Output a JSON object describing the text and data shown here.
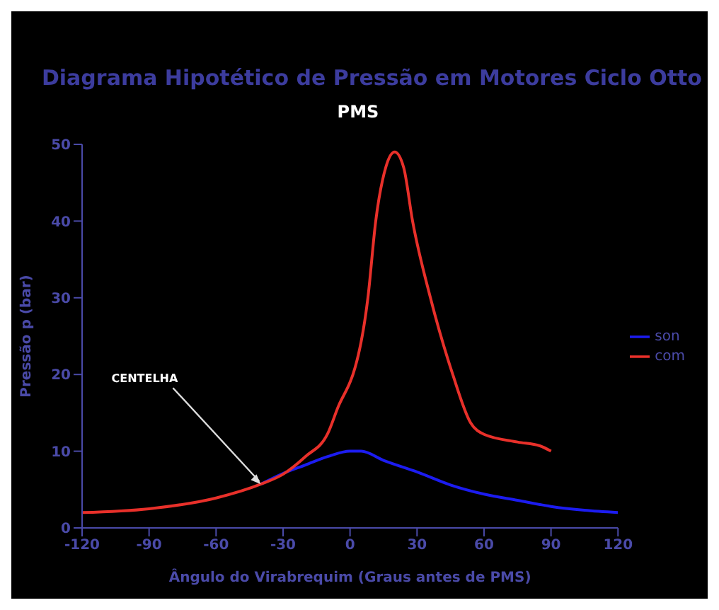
{
  "chart_data": {
    "type": "line",
    "title": "Diagrama Hipotético de Pressão em Motores Ciclo Otto",
    "xlabel": "Ângulo do Virabrequim (Graus antes de PMS)",
    "ylabel": "Pressão p (bar)",
    "xlim": [
      -120,
      120
    ],
    "xticks": [
      -120,
      -90,
      -60,
      -30,
      0,
      30,
      60,
      90,
      120
    ],
    "ylim": [
      0,
      50
    ],
    "yticks": [
      0,
      10,
      20,
      30,
      40,
      50
    ],
    "grid": false,
    "legend": "right",
    "marker": "none",
    "line_style": "solid",
    "annotations": [
      "PMS",
      {
        "text": "CENTELHA",
        "x": -40,
        "y": 5.7
      }
    ],
    "series": [
      {
        "name": "son",
        "color": "#1c1cf0",
        "x": [
          -40,
          -30,
          -20,
          -10,
          0,
          5,
          15,
          30,
          45,
          60,
          75,
          90,
          105,
          120
        ],
        "values": [
          5.7,
          7.1,
          8.2,
          9.3,
          10,
          10,
          8.8,
          7.3,
          5.6,
          4.4,
          3.6,
          2.8,
          2.3,
          2
        ]
      },
      {
        "name": "com",
        "color": "#e8302a",
        "x": [
          -120,
          -90,
          -60,
          -40,
          -30,
          -20,
          -10,
          -5,
          0,
          1.3,
          8,
          11.5,
          16,
          20,
          24,
          28,
          36,
          46,
          54,
          60,
          75,
          85,
          90
        ],
        "values": [
          2,
          2.5,
          3.9,
          5.7,
          7,
          9.3,
          12.3,
          16,
          19,
          20,
          30,
          40,
          47,
          49,
          47,
          40,
          30,
          20,
          13.7,
          12.2,
          11.2,
          10.7,
          10
        ]
      }
    ]
  }
}
